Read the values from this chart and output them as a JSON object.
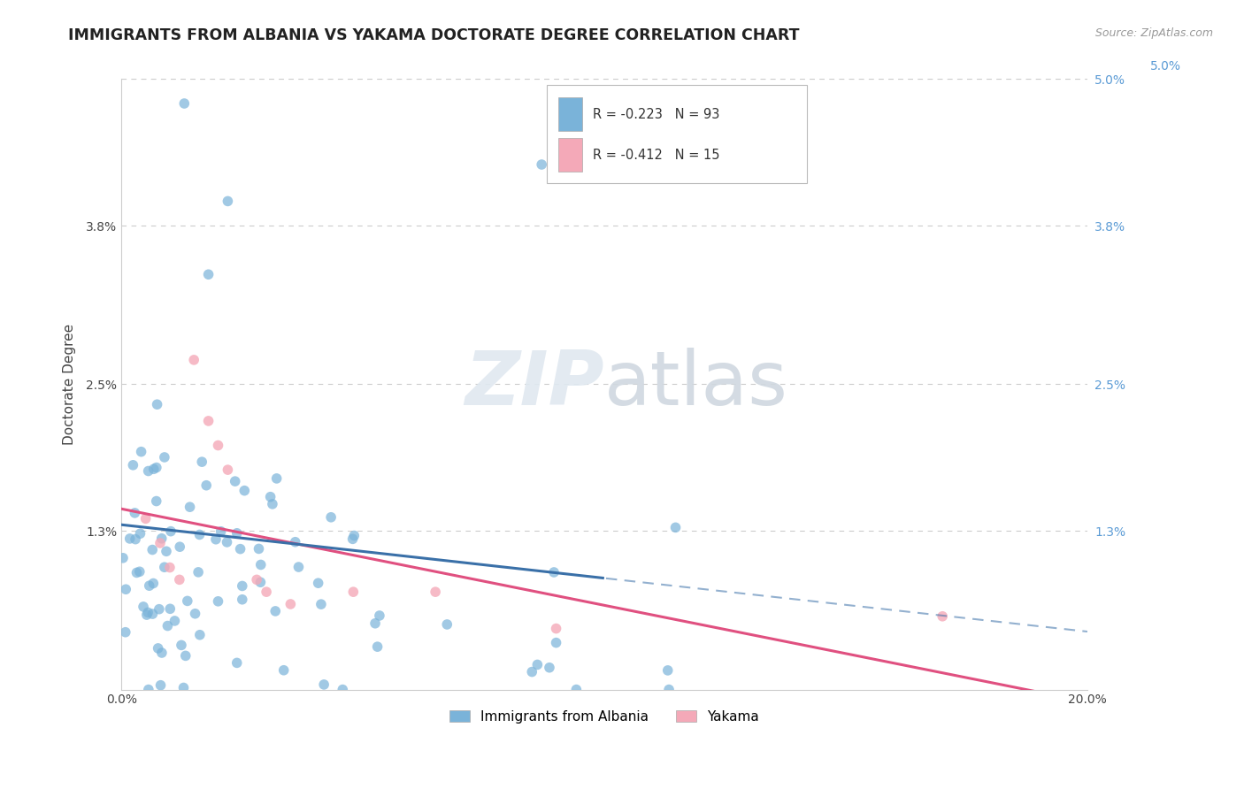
{
  "title": "IMMIGRANTS FROM ALBANIA VS YAKAMA DOCTORATE DEGREE CORRELATION CHART",
  "source_text": "Source: ZipAtlas.com",
  "ylabel": "Doctorate Degree",
  "watermark_zip": "ZIP",
  "watermark_atlas": "atlas",
  "xlim": [
    0.0,
    0.2
  ],
  "ylim": [
    0.0,
    0.05
  ],
  "ytick_values": [
    0.0,
    0.013,
    0.025,
    0.038,
    0.05
  ],
  "ytick_labels_left": [
    "",
    "1.3%",
    "2.5%",
    "3.8%",
    ""
  ],
  "ytick_labels_right": [
    "",
    "1.3%",
    "2.5%",
    "3.8%",
    "5.0%"
  ],
  "xtick_values": [
    0.0,
    0.2
  ],
  "xtick_labels": [
    "0.0%",
    "20.0%"
  ],
  "albania_color": "#7ab3d9",
  "yakama_color": "#f4a9b8",
  "albania_trend_color": "#3a70a8",
  "yakama_trend_color": "#e05080",
  "legend_text1": "R = -0.223   N = 93",
  "legend_text2": "R = -0.412   N = 15",
  "bottom_legend1": "Immigrants from Albania",
  "bottom_legend2": "Yakama",
  "background_color": "#ffffff",
  "grid_color": "#cccccc",
  "title_color": "#222222",
  "source_color": "#999999",
  "right_tick_color": "#5b9bd5",
  "top_label_5pct": "5.0%",
  "alb_trend_start_y": 0.0135,
  "alb_trend_end_x": 0.16,
  "alb_trend_end_y": 0.0065,
  "yak_trend_start_y": 0.0148,
  "yak_trend_end_x": 0.2,
  "yak_trend_end_y": -0.001
}
